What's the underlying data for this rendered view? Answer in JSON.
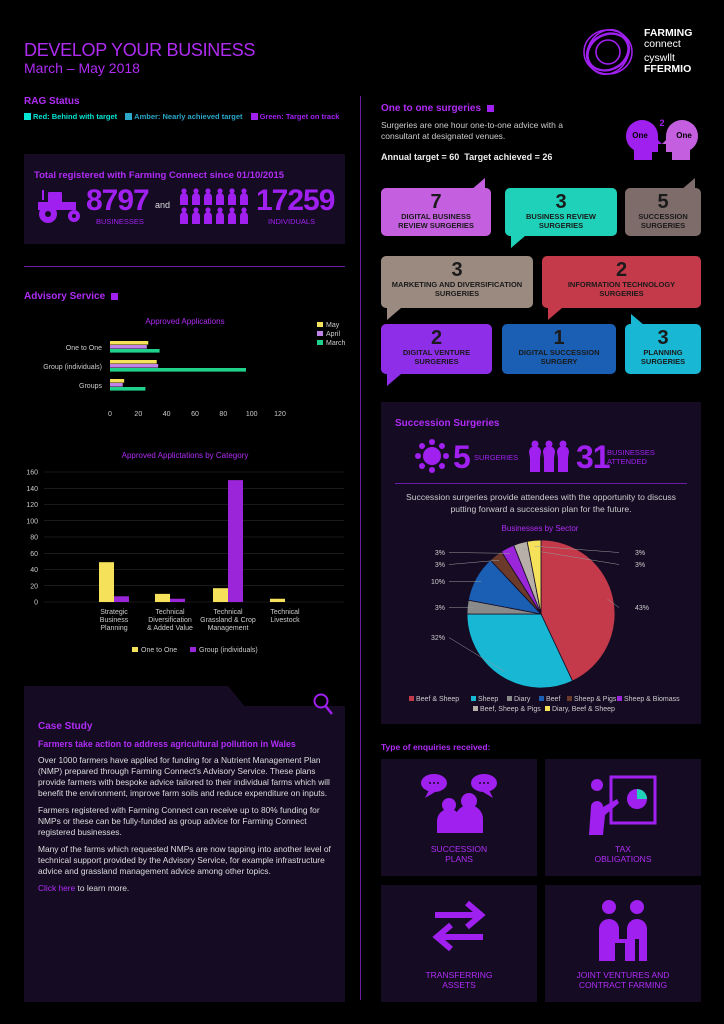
{
  "header": {
    "title": "DEVELOP YOUR BUSINESS",
    "subtitle": "March – May 2018",
    "logo_line1": "FARMING",
    "logo_line2": "connect",
    "logo_line3": "cyswllt",
    "logo_line4": "FFERMIO"
  },
  "rag": {
    "heading": "RAG Status",
    "items": [
      {
        "label": "Red: Behind with target",
        "color": "#00e5d4"
      },
      {
        "label": "Amber: Nearly achieved target",
        "color": "#2aa7c9"
      },
      {
        "label": "Green: Target on track",
        "color": "#a020f0"
      }
    ]
  },
  "totals": {
    "heading": "Total registered with Farming Connect since 01/10/2015",
    "businesses": "8797",
    "businesses_label": "BUSINESSES",
    "and": "and",
    "individuals": "17259",
    "individuals_label": "INDIVIDUALS"
  },
  "advisory": {
    "heading": "Advisory Service"
  },
  "one_to_one": {
    "heading": "One to one surgeries",
    "desc": "Surgeries are one hour one-to-one advice with a consultant at designated venues.",
    "annual_target": "Annual target = 60",
    "achieved": "Target achieved = 26",
    "icon_left": "One",
    "icon_mid": "2",
    "icon_right": "One",
    "surgeries": [
      {
        "n": "7",
        "label": "DIGITAL BUSINESS REVIEW SURGERIES",
        "color": "#c45fe0"
      },
      {
        "n": "3",
        "label": "BUSINESS REVIEW SURGERIES",
        "color": "#1fd1b8"
      },
      {
        "n": "5",
        "label": "SUCCESSION SURGERIES",
        "color": "#7d6c6a"
      },
      {
        "n": "3",
        "label": "MARKETING AND DIVERSIFICATION SURGERIES",
        "color": "#9a8a80"
      },
      {
        "n": "2",
        "label": "INFORMATION TECHNOLOGY SURGERIES",
        "color": "#c43a4a"
      },
      {
        "n": "2",
        "label": "DIGITAL VENTURE SURGERIES",
        "color": "#8e2ee8"
      },
      {
        "n": "1",
        "label": "DIGITAL SUCCESSION SURGERY",
        "color": "#1a5fb4"
      },
      {
        "n": "3",
        "label": "PLANNING SURGERIES",
        "color": "#18b7d4"
      }
    ]
  },
  "succession": {
    "heading": "Succession Surgeries",
    "surgeries": "5",
    "surgeries_label": "SURGERIES",
    "businesses": "31",
    "businesses_label1": "BUSINESSES",
    "businesses_label2": "ATTENDED",
    "desc": "Succession surgeries provide attendees with the opportunity to discuss putting forward a succession plan for the future."
  },
  "chart_data": [
    {
      "type": "bar",
      "title": "Approved Applications",
      "orientation": "horizontal",
      "categories": [
        "One to One",
        "Group (individuals)",
        "Groups"
      ],
      "series": [
        {
          "name": "May",
          "color": "#f5e15a",
          "values": [
            27,
            33,
            10
          ]
        },
        {
          "name": "April",
          "color": "#c084e8",
          "values": [
            26,
            34,
            9
          ]
        },
        {
          "name": "March",
          "color": "#1fd18a",
          "values": [
            35,
            96,
            25
          ]
        }
      ],
      "xlim": [
        0,
        120
      ],
      "xticks": [
        "0",
        "20",
        "40",
        "60",
        "80",
        "100",
        "120"
      ],
      "legend": "top-right"
    },
    {
      "type": "bar",
      "title": "Approved Applictations by Category",
      "categories": [
        "Strategic Business Planning",
        "Technical Diversification & Added Value",
        "Technical Grassland & Crop Management",
        "Technical Livestock"
      ],
      "category_lines": [
        [
          "Strategic",
          "Business",
          "Planning"
        ],
        [
          "Technical",
          "Diversification",
          "& Added Value"
        ],
        [
          "Technical",
          "Grassland & Crop",
          "Management"
        ],
        [
          "Technical",
          "Livestock"
        ]
      ],
      "series": [
        {
          "name": "One to One",
          "color": "#f5e15a",
          "values": [
            49,
            10,
            17,
            4
          ]
        },
        {
          "name": "Group (individuals)",
          "color": "#9b26d9",
          "values": [
            7,
            4,
            150,
            0
          ]
        }
      ],
      "ylim": [
        0,
        160
      ],
      "yticks": [
        "0",
        "20",
        "40",
        "60",
        "80",
        "100",
        "120",
        "140",
        "160"
      ],
      "legend": "bottom"
    },
    {
      "type": "pie",
      "title": "Businesses by Sector",
      "slices": [
        {
          "name": "Beef & Sheep",
          "value": 43,
          "label": "43%",
          "color": "#c43a4a"
        },
        {
          "name": "Sheep",
          "value": 32,
          "label": "32%",
          "color": "#18b7d4"
        },
        {
          "name": "Diary",
          "value": 3,
          "label": "3%",
          "color": "#8a8a8a"
        },
        {
          "name": "Beef",
          "value": 10,
          "label": "10%",
          "color": "#1a5fb4"
        },
        {
          "name": "Sheep & Pigs",
          "value": 3,
          "label": "3%",
          "color": "#6b3a2a"
        },
        {
          "name": "Sheep & Biomass",
          "value": 3,
          "label": "3%",
          "color": "#9b26d9"
        },
        {
          "name": "Beef, Sheep & Pigs",
          "value": 3,
          "label": "3%",
          "color": "#b8b0a8"
        },
        {
          "name": "Diary, Beef & Sheep",
          "value": 3,
          "label": "3%",
          "color": "#f5e15a"
        }
      ],
      "legend": "bottom"
    }
  ],
  "case_study": {
    "heading": "Case Study",
    "subheading": "Farmers take action to address agricultural pollution in Wales",
    "p1": "Over 1000 farmers have applied for funding for a Nutrient Management Plan (NMP) prepared through Farming Connect's Advisory Service. These plans provide farmers with bespoke advice tailored to their individual farms which will benefit the environment, improve farm soils and reduce expenditure on inputs.",
    "p2": "Farmers registered with Farming Connect can receive up to 80% funding for NMPs or these can be fully-funded as group advice for Farming Connect registered businesses.",
    "p3": "Many of the farms which requested NMPs are now tapping into another level of technical support provided by the Advisory Service, for example infrastructure advice and grassland management advice among other topics.",
    "link": "Click here",
    "link_tail": " to learn more."
  },
  "enquiries": {
    "heading": "Type of enquiries received:",
    "items": [
      {
        "line1": "SUCCESSION",
        "line2": "PLANS"
      },
      {
        "line1": "TAX",
        "line2": "OBLIGATIONS"
      },
      {
        "line1": "TRANSFERRING",
        "line2": "ASSETS"
      },
      {
        "line1": "JOINT VENTURES AND",
        "line2": "CONTRACT FARMING"
      }
    ]
  }
}
